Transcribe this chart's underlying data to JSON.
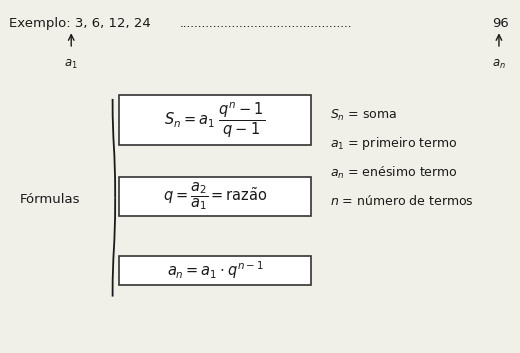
{
  "bg_color": "#f0f0e8",
  "text_color": "#1a1a1a",
  "formulas_label": "Fórmulas",
  "box_color": "#ffffff",
  "box_edge_color": "#333333"
}
